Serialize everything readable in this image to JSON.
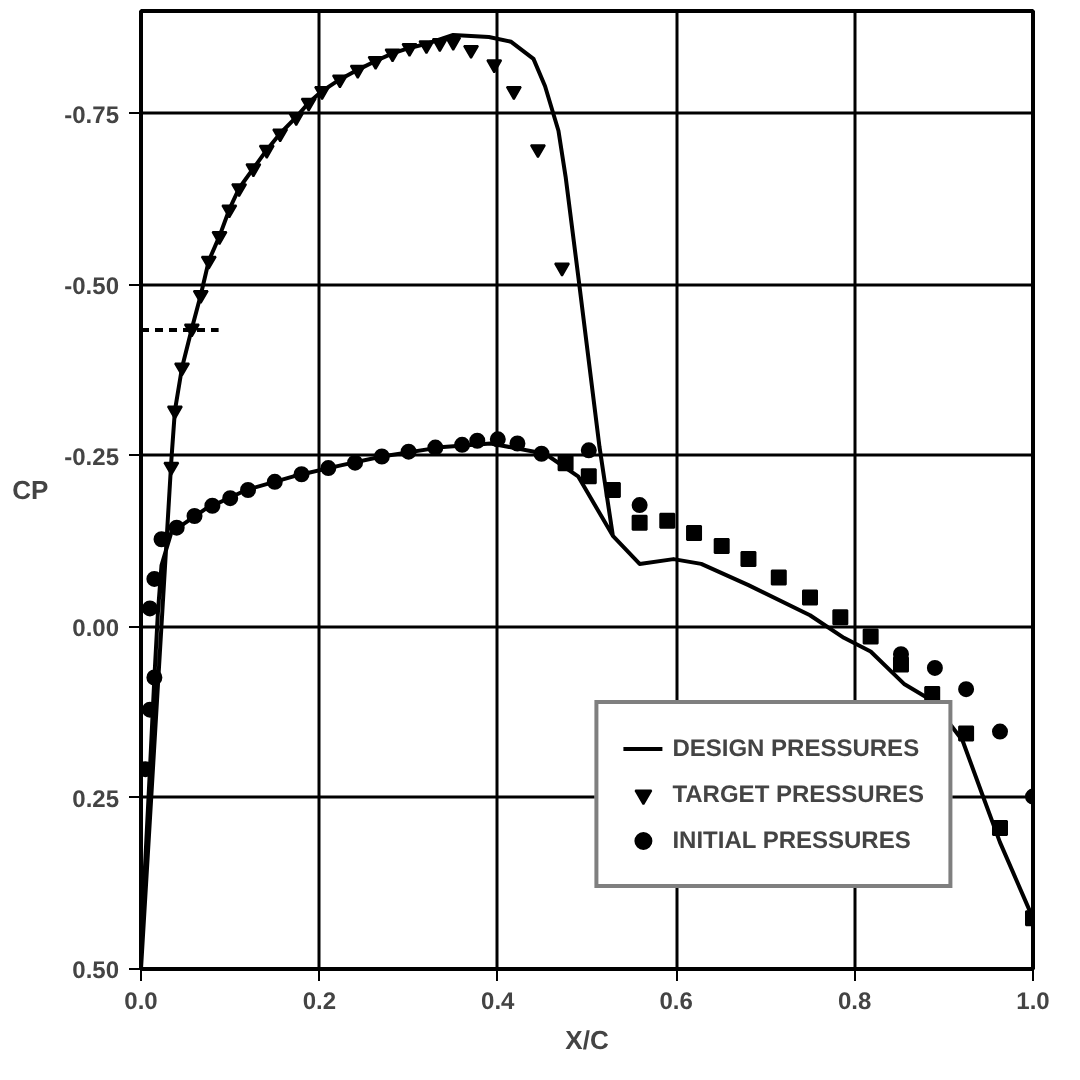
{
  "chart_data": {
    "type": "line",
    "xlabel": "X/C",
    "ylabel": "CP",
    "xlim": [
      0,
      1.0
    ],
    "ylim": [
      0.5,
      -0.9
    ],
    "xticks": [
      {
        "value": 0,
        "label": "0.0"
      },
      0.2,
      0.4,
      0.6,
      0.8,
      {
        "value": 1.0,
        "label": "1.0"
      }
    ],
    "yticks": [
      -0.75,
      {
        "value": -0.5,
        "label": "-0.50"
      },
      -0.25,
      {
        "value": 0,
        "label": "0.00"
      },
      0.25,
      {
        "value": 0.5,
        "label": "0.50"
      }
    ],
    "grid": true,
    "legend": "bottom right",
    "series": [
      {
        "name": "DESIGN PRESSURES",
        "line_style": "solid",
        "marker": "none",
        "color": "#000000",
        "x": [
          0,
          0.034,
          0.038,
          0.046,
          0.057,
          0.067,
          0.076,
          0.088,
          0.099,
          0.11,
          0.126,
          0.141,
          0.156,
          0.174,
          0.188,
          0.203,
          0.223,
          0.243,
          0.263,
          0.282,
          0.301,
          0.32,
          0.35,
          0.39,
          0.415,
          0.44,
          0.453,
          0.468,
          0.476,
          0.491,
          0.514,
          0.529,
          0.559,
          0.597,
          0.628,
          0.681,
          0.75,
          0.788,
          0.818,
          0.856,
          0.887,
          0.921,
          0.944,
          0.963,
          1.0,
          null,
          0,
          0.004,
          0.01,
          0.015,
          0.019,
          0.023,
          0.034,
          0.072,
          0.118,
          0.171,
          0.224,
          0.27,
          0.339,
          0.392,
          0.453,
          0.49,
          0.529
        ],
        "values": [
          0.5,
          -0.243,
          -0.316,
          -0.379,
          -0.436,
          -0.485,
          -0.535,
          -0.571,
          -0.61,
          -0.641,
          -0.67,
          -0.697,
          -0.721,
          -0.745,
          -0.766,
          -0.783,
          -0.8,
          -0.814,
          -0.827,
          -0.838,
          -0.846,
          -0.852,
          -0.865,
          -0.862,
          -0.855,
          -0.83,
          -0.79,
          -0.725,
          -0.658,
          -0.504,
          -0.263,
          -0.133,
          -0.092,
          -0.099,
          -0.092,
          -0.061,
          -0.017,
          0.016,
          0.036,
          0.084,
          0.108,
          0.166,
          0.248,
          0.315,
          0.426,
          null,
          0.5,
          0.363,
          0.209,
          0.074,
          -0.022,
          -0.09,
          -0.138,
          -0.172,
          -0.2,
          -0.22,
          -0.236,
          -0.249,
          -0.263,
          -0.268,
          -0.253,
          -0.22,
          -0.133
        ]
      },
      {
        "line_style": "dashed",
        "marker": "none",
        "color": "#000000",
        "x": [
          0,
          0.087
        ],
        "values": [
          -0.434,
          -0.434
        ]
      },
      {
        "name": "TARGET PRESSURES",
        "type": "scatter",
        "marker": "triangle",
        "color": "#000000",
        "x": [
          0.034,
          0.038,
          0.046,
          0.057,
          0.067,
          0.076,
          0.088,
          0.099,
          0.11,
          0.126,
          0.141,
          0.156,
          0.174,
          0.188,
          0.203,
          0.223,
          0.243,
          0.263,
          0.282,
          0.301,
          0.32,
          0.335,
          0.35,
          0.37,
          0.396,
          0.418,
          0.445,
          0.472
        ],
        "values": [
          -0.234,
          -0.316,
          -0.379,
          -0.436,
          -0.485,
          -0.535,
          -0.571,
          -0.61,
          -0.641,
          -0.67,
          -0.697,
          -0.721,
          -0.745,
          -0.766,
          -0.783,
          -0.8,
          -0.814,
          -0.827,
          -0.838,
          -0.846,
          -0.85,
          -0.853,
          -0.855,
          -0.843,
          -0.822,
          -0.783,
          -0.698,
          -0.525
        ]
      },
      {
        "name": "INITIAL PRESSURES",
        "type": "scatter",
        "marker": "circle",
        "color": "#000000",
        "x": [
          0.005,
          0.01,
          0.015,
          0.01,
          0.015,
          0.023,
          0.04,
          0.06,
          0.08,
          0.1,
          0.12,
          0.15,
          0.18,
          0.21,
          0.24,
          0.27,
          0.3,
          0.33,
          0.36,
          0.377,
          0.4,
          0.422,
          0.449,
          0.502,
          0.559,
          0.852,
          0.89,
          0.925,
          0.963,
          1.0
        ],
        "values": [
          0.208,
          0.121,
          0.074,
          -0.027,
          -0.07,
          -0.128,
          -0.145,
          -0.162,
          -0.177,
          -0.188,
          -0.2,
          -0.212,
          -0.223,
          -0.232,
          -0.24,
          -0.249,
          -0.256,
          -0.262,
          -0.266,
          -0.272,
          -0.274,
          -0.268,
          -0.253,
          -0.258,
          -0.178,
          0.04,
          0.06,
          0.091,
          0.153,
          0.248
        ]
      },
      {
        "type": "scatter",
        "marker": "square",
        "color": "#000000",
        "x": [
          0.476,
          0.502,
          0.529,
          0.559,
          0.59,
          0.62,
          0.651,
          0.681,
          0.715,
          0.75,
          0.784,
          0.818,
          0.852,
          0.887,
          0.925,
          0.963,
          1.0
        ],
        "values": [
          -0.239,
          -0.22,
          -0.2,
          -0.152,
          -0.155,
          -0.137,
          -0.118,
          -0.099,
          -0.072,
          -0.043,
          -0.014,
          0.014,
          0.055,
          0.098,
          0.156,
          0.294,
          0.426
        ]
      }
    ]
  }
}
